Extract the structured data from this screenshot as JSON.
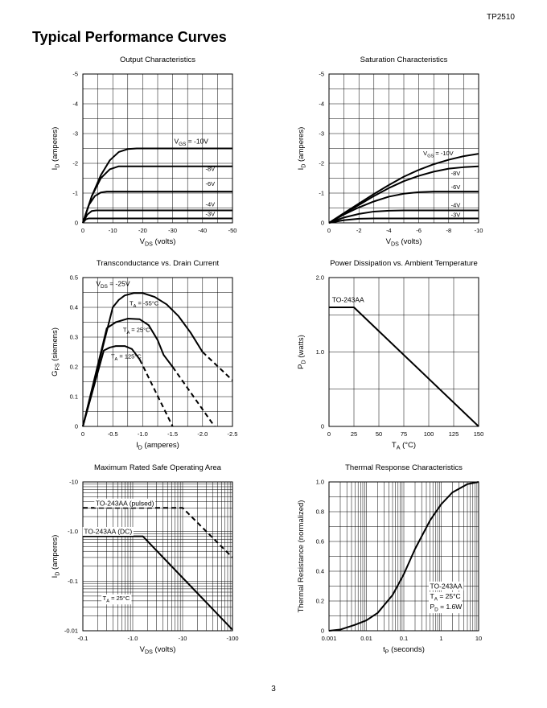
{
  "header": {
    "part_number": "TP2510",
    "section_title": "Typical Performance Curves"
  },
  "footer": {
    "page_number": "3"
  },
  "chart_data": [
    {
      "id": "output",
      "type": "line",
      "title": "Output Characteristics",
      "xlabel": "V_DS (volts)",
      "ylabel": "I_D (amperes)",
      "xlim": [
        0,
        -50
      ],
      "ylim": [
        0,
        -5
      ],
      "x_ticks": [
        0,
        -10,
        -20,
        -30,
        -40,
        -50
      ],
      "x_tick_labels": [
        "0",
        "-10",
        "-20",
        "-30",
        "-40",
        "-50"
      ],
      "y_ticks": [
        0,
        -1,
        -2,
        -3,
        -4,
        -5
      ],
      "y_tick_labels": [
        "0",
        "-1",
        "-2",
        "-3",
        "-4",
        "-5"
      ],
      "x_grid_step": -5,
      "y_grid_step": -0.5,
      "series": [
        {
          "name": "V_GS = -10V",
          "points": [
            [
              0,
              0
            ],
            [
              -3,
              -0.9
            ],
            [
              -6,
              -1.6
            ],
            [
              -9,
              -2.1
            ],
            [
              -12,
              -2.38
            ],
            [
              -15,
              -2.48
            ],
            [
              -18,
              -2.5
            ],
            [
              -50,
              -2.5
            ]
          ]
        },
        {
          "name": "-8V",
          "points": [
            [
              0,
              0
            ],
            [
              -3,
              -0.9
            ],
            [
              -6,
              -1.5
            ],
            [
              -9,
              -1.8
            ],
            [
              -12,
              -1.9
            ],
            [
              -15,
              -1.9
            ],
            [
              -50,
              -1.9
            ]
          ]
        },
        {
          "name": "-6V",
          "points": [
            [
              0,
              0
            ],
            [
              -2,
              -0.6
            ],
            [
              -4,
              -0.9
            ],
            [
              -6,
              -1.02
            ],
            [
              -8,
              -1.05
            ],
            [
              -50,
              -1.05
            ]
          ]
        },
        {
          "name": "-4V",
          "points": [
            [
              0,
              0
            ],
            [
              -1.5,
              -0.28
            ],
            [
              -3,
              -0.4
            ],
            [
              -4.5,
              -0.42
            ],
            [
              -50,
              -0.42
            ]
          ]
        },
        {
          "name": "-3V",
          "points": [
            [
              0,
              0
            ],
            [
              -1,
              -0.12
            ],
            [
              -2,
              -0.15
            ],
            [
              -50,
              -0.15
            ]
          ]
        }
      ],
      "labels": [
        {
          "text": "V_GS = -10V",
          "x": -30.5,
          "y": -2.66,
          "style": "ann"
        },
        {
          "text": "-8V",
          "x": -41,
          "y": -1.75,
          "style": "curve"
        },
        {
          "text": "-6V",
          "x": -41,
          "y": -1.24,
          "style": "curve"
        },
        {
          "text": "-4V",
          "x": -41,
          "y": -0.55,
          "style": "curve"
        },
        {
          "text": "-3V",
          "x": -41,
          "y": -0.23,
          "style": "curve"
        }
      ]
    },
    {
      "id": "saturation",
      "type": "line",
      "title": "Saturation Characteristics",
      "xlabel": "V_DS (volts)",
      "ylabel": "I_D (amperes)",
      "xlim": [
        0,
        -10
      ],
      "ylim": [
        0,
        -5
      ],
      "x_ticks": [
        0,
        -2,
        -4,
        -6,
        -8,
        -10
      ],
      "x_tick_labels": [
        "0",
        "-2",
        "-4",
        "-6",
        "-8",
        "-10"
      ],
      "y_ticks": [
        0,
        -1,
        -2,
        -3,
        -4,
        -5
      ],
      "y_tick_labels": [
        "0",
        "-1",
        "-2",
        "-3",
        "-4",
        "-5"
      ],
      "x_grid_step": -1,
      "y_grid_step": -0.5,
      "series": [
        {
          "name": "V_GS = -10V",
          "points": [
            [
              0,
              0
            ],
            [
              -1,
              -0.33
            ],
            [
              -2,
              -0.65
            ],
            [
              -3,
              -0.97
            ],
            [
              -4,
              -1.27
            ],
            [
              -5,
              -1.55
            ],
            [
              -6,
              -1.78
            ],
            [
              -7,
              -1.97
            ],
            [
              -8,
              -2.12
            ],
            [
              -9,
              -2.24
            ],
            [
              -10,
              -2.32
            ]
          ]
        },
        {
          "name": "-8V",
          "points": [
            [
              0,
              0
            ],
            [
              -1,
              -0.31
            ],
            [
              -2,
              -0.6
            ],
            [
              -3,
              -0.9
            ],
            [
              -4,
              -1.17
            ],
            [
              -5,
              -1.4
            ],
            [
              -6,
              -1.58
            ],
            [
              -7,
              -1.72
            ],
            [
              -8,
              -1.82
            ],
            [
              -9,
              -1.87
            ],
            [
              -10,
              -1.9
            ]
          ]
        },
        {
          "name": "-6V",
          "points": [
            [
              0,
              0
            ],
            [
              -1,
              -0.28
            ],
            [
              -2,
              -0.52
            ],
            [
              -3,
              -0.72
            ],
            [
              -4,
              -0.88
            ],
            [
              -5,
              -0.98
            ],
            [
              -6,
              -1.03
            ],
            [
              -7,
              -1.05
            ],
            [
              -10,
              -1.05
            ]
          ]
        },
        {
          "name": "-4V",
          "points": [
            [
              0,
              0
            ],
            [
              -1,
              -0.18
            ],
            [
              -2,
              -0.3
            ],
            [
              -3,
              -0.38
            ],
            [
              -4,
              -0.41
            ],
            [
              -5,
              -0.42
            ],
            [
              -10,
              -0.42
            ]
          ]
        },
        {
          "name": "-3V",
          "points": [
            [
              0,
              0
            ],
            [
              -1,
              -0.09
            ],
            [
              -2,
              -0.14
            ],
            [
              -3,
              -0.15
            ],
            [
              -10,
              -0.15
            ]
          ]
        }
      ],
      "labels": [
        {
          "text": "V_GS = -10V",
          "x": -6.3,
          "y": -2.27,
          "style": "curve"
        },
        {
          "text": "-8V",
          "x": -8.15,
          "y": -1.6,
          "style": "curve"
        },
        {
          "text": "-6V",
          "x": -8.15,
          "y": -1.14,
          "style": "curve"
        },
        {
          "text": "-4V",
          "x": -8.15,
          "y": -0.53,
          "style": "curve"
        },
        {
          "text": "-3V",
          "x": -8.15,
          "y": -0.2,
          "style": "curve"
        }
      ]
    },
    {
      "id": "transconductance",
      "type": "line",
      "title": "Transconductance vs. Drain Current",
      "xlabel": "I_D (amperes)",
      "ylabel": "G_FS (siemens)",
      "xlim": [
        0,
        -2.5
      ],
      "ylim": [
        0,
        0.5
      ],
      "x_ticks": [
        0,
        -0.5,
        -1.0,
        -1.5,
        -2.0,
        -2.5
      ],
      "x_tick_labels": [
        "0",
        "-0.5",
        "-1.0",
        "-1.5",
        "-2.0",
        "-2.5"
      ],
      "y_ticks": [
        0,
        0.1,
        0.2,
        0.3,
        0.4,
        0.5
      ],
      "y_tick_labels": [
        "0",
        "0.1",
        "0.2",
        "0.3",
        "0.4",
        "0.5"
      ],
      "x_grid_step": -0.25,
      "y_grid_step": 0.05,
      "series": [
        {
          "name": "T_A = -55°C",
          "points": [
            [
              0,
              0
            ],
            [
              -0.5,
              0.4
            ],
            [
              -0.6,
              0.425
            ],
            [
              -0.7,
              0.44
            ],
            [
              -0.85,
              0.448
            ],
            [
              -1.0,
              0.448
            ],
            [
              -1.2,
              0.435
            ],
            [
              -1.4,
              0.41
            ],
            [
              -1.6,
              0.37
            ],
            [
              -1.8,
              0.315
            ],
            [
              -2.0,
              0.25
            ]
          ]
        },
        {
          "name": "T_A = -55°C (extrapolated)",
          "dashed": true,
          "points": [
            [
              -2.0,
              0.25
            ],
            [
              -2.5,
              0.155
            ]
          ]
        },
        {
          "name": "T_A = 25°C",
          "points": [
            [
              0,
              0
            ],
            [
              -0.4,
              0.33
            ],
            [
              -0.55,
              0.35
            ],
            [
              -0.75,
              0.362
            ],
            [
              -0.95,
              0.36
            ],
            [
              -1.1,
              0.34
            ],
            [
              -1.25,
              0.29
            ],
            [
              -1.35,
              0.24
            ],
            [
              -1.5,
              0.2
            ]
          ]
        },
        {
          "name": "T_A = 25°C (extrapolated)",
          "dashed": true,
          "points": [
            [
              -1.5,
              0.2
            ],
            [
              -2.2,
              0
            ]
          ]
        },
        {
          "name": "T_A = 125°C",
          "points": [
            [
              0,
              0
            ],
            [
              -0.35,
              0.255
            ],
            [
              -0.45,
              0.265
            ],
            [
              -0.55,
              0.27
            ],
            [
              -0.7,
              0.27
            ],
            [
              -0.82,
              0.26
            ],
            [
              -0.95,
              0.225
            ]
          ]
        },
        {
          "name": "T_A = 125°C (extrapolated)",
          "dashed": true,
          "points": [
            [
              -0.95,
              0.225
            ],
            [
              -1.5,
              0
            ]
          ]
        }
      ],
      "labels": [
        {
          "text": "V_DS = -25V",
          "x": -0.22,
          "y": 0.472,
          "style": "ann"
        },
        {
          "text": "T_A = -55°C",
          "x": -0.78,
          "y": 0.407,
          "style": "curve"
        },
        {
          "text": "T_A = 25°C",
          "x": -0.67,
          "y": 0.318,
          "style": "curve"
        },
        {
          "text": "T_A = 125°C",
          "x": -0.47,
          "y": 0.228,
          "style": "curve"
        }
      ]
    },
    {
      "id": "power",
      "type": "line",
      "title": "Power Dissipation vs. Ambient Temperature",
      "xlabel": "T_A (°C)",
      "ylabel": "P_D (watts)",
      "xlim": [
        0,
        150
      ],
      "ylim": [
        0,
        2.0
      ],
      "x_ticks": [
        0,
        25,
        50,
        75,
        100,
        125,
        150
      ],
      "x_tick_labels": [
        "0",
        "25",
        "50",
        "75",
        "100",
        "125",
        "150"
      ],
      "y_ticks": [
        0,
        1.0,
        2.0
      ],
      "y_tick_labels": [
        "0",
        "1.0",
        "2.0"
      ],
      "x_grid_step": 25,
      "y_grid_step": 0.5,
      "series": [
        {
          "name": "TO-243AA",
          "points": [
            [
              0,
              1.6
            ],
            [
              25,
              1.6
            ],
            [
              150,
              0
            ]
          ]
        }
      ],
      "labels": [
        {
          "text": "TO-243AA",
          "x": 3,
          "y": 1.67,
          "style": "ann"
        }
      ]
    },
    {
      "id": "soa",
      "type": "line",
      "xscale": "log",
      "yscale": "log",
      "title": "Maximum Rated Safe Operating Area",
      "xlabel": "V_DS (volts)",
      "ylabel": "I_D (amperes)",
      "xlim": [
        -0.1,
        -100
      ],
      "ylim": [
        -0.01,
        -10
      ],
      "x_ticks": [
        -0.1,
        -1.0,
        -10,
        -100
      ],
      "x_tick_labels": [
        "-0.1",
        "-1.0",
        "-10",
        "-100"
      ],
      "y_ticks": [
        -0.01,
        -0.1,
        -1.0,
        -10
      ],
      "y_tick_labels": [
        "-0.01",
        "-0.1",
        "-1.0",
        "-10"
      ],
      "series": [
        {
          "name": "TO-243AA (pulsed)",
          "dashed": true,
          "points": [
            [
              -0.1,
              -3.0
            ],
            [
              -10,
              -3.0
            ],
            [
              -100,
              -0.3
            ]
          ]
        },
        {
          "name": "TO-243AA (DC)",
          "points": [
            [
              -0.1,
              -0.8
            ],
            [
              -1.6,
              -0.8
            ],
            [
              -100,
              -0.0105
            ]
          ]
        }
      ],
      "labels": [
        {
          "text": "TO-243AA (pulsed)",
          "x": -0.18,
          "y": -3.35,
          "style": "ann",
          "bg": true
        },
        {
          "text": "TO-243AA (DC)",
          "x": -0.105,
          "y": -0.9,
          "style": "ann",
          "bg": true
        },
        {
          "text": "T_A = 25°C",
          "x": -0.25,
          "y": -0.041,
          "style": "curve",
          "bg": true
        }
      ]
    },
    {
      "id": "thermal",
      "type": "line",
      "xscale": "log",
      "title": "Thermal Response Characteristics",
      "xlabel": "t_P (seconds)",
      "ylabel": "Thermal Resistance (normalized)",
      "xlim": [
        0.001,
        10
      ],
      "ylim": [
        0,
        1.0
      ],
      "x_ticks": [
        0.001,
        0.01,
        0.1,
        1,
        10
      ],
      "x_tick_labels": [
        "0.001",
        "0.01",
        "0.1",
        "1",
        "10"
      ],
      "y_ticks": [
        0,
        0.2,
        0.4,
        0.6,
        0.8,
        1.0
      ],
      "y_tick_labels": [
        "0",
        "0.2",
        "0.4",
        "0.6",
        "0.8",
        "1.0"
      ],
      "y_grid_step": 0.1,
      "series": [
        {
          "name": "TO-243AA",
          "points": [
            [
              0.001,
              0
            ],
            [
              0.002,
              0.008
            ],
            [
              0.005,
              0.04
            ],
            [
              0.01,
              0.07
            ],
            [
              0.02,
              0.12
            ],
            [
              0.05,
              0.24
            ],
            [
              0.1,
              0.38
            ],
            [
              0.2,
              0.55
            ],
            [
              0.5,
              0.74
            ],
            [
              1,
              0.85
            ],
            [
              2,
              0.93
            ],
            [
              5,
              0.985
            ],
            [
              10,
              1.0
            ]
          ]
        }
      ],
      "labels": [
        {
          "text": "TO-243AA",
          "x": 0.5,
          "y": 0.285,
          "style": "ann",
          "bg": true
        },
        {
          "text": "T_A = 25°C",
          "x": 0.5,
          "y": 0.215,
          "style": "ann",
          "bg": true
        },
        {
          "text": "P_D = 1.6W",
          "x": 0.5,
          "y": 0.145,
          "style": "ann",
          "bg": true
        }
      ]
    }
  ]
}
